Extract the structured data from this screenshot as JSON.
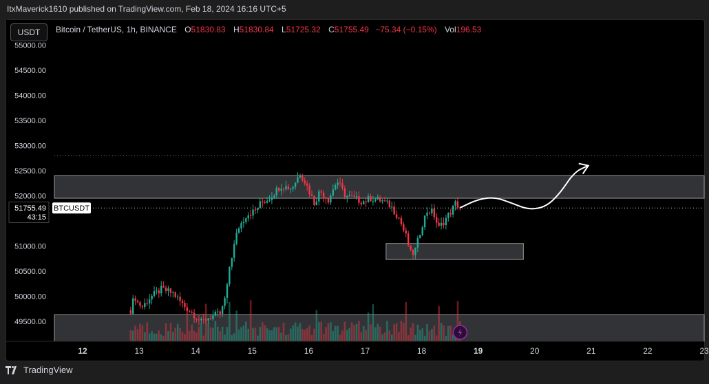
{
  "publisher": "ItxMaverick1610 published on TradingView.com, Feb 18, 2024 16:16 UTC+5",
  "currency": "USDT",
  "legend": {
    "pair": "Bitcoin / TetherUS, 1h, BINANCE",
    "o_label": "O",
    "o": "51830.83",
    "h_label": "H",
    "h": "51830.84",
    "l_label": "L",
    "l": "51725.32",
    "c_label": "C",
    "c": "51755.49",
    "change": "−75.34 (−0.15%)",
    "vol_label": "Vol",
    "vol": "196.53"
  },
  "price_tag": {
    "symbol": "BTCUSDT",
    "price": "51755.49",
    "countdown": "43:15"
  },
  "footer_brand": "TradingView",
  "colors": {
    "up": "#22ab94",
    "down": "#f23645",
    "zone": "#5b5d63",
    "arrow": "#ffffff",
    "lightning": "#9c27b0"
  },
  "chart_data": {
    "type": "candlestick",
    "title": "Bitcoin / TetherUS, 1h, BINANCE",
    "y_ticks": [
      55000,
      54500,
      54000,
      53500,
      53000,
      52500,
      52000,
      51000,
      50500,
      50000,
      49500
    ],
    "y_tick_labels": [
      "55000.00",
      "54500.00",
      "54000.00",
      "53500.00",
      "53000.00",
      "52500.00",
      "52000.00",
      "51000.00",
      "50500.00",
      "50000.00",
      "49500.00"
    ],
    "ylim": [
      49100,
      55500
    ],
    "x_ticks": [
      "12",
      "13",
      "14",
      "15",
      "16",
      "17",
      "18",
      "19",
      "20",
      "21",
      "22",
      "23"
    ],
    "x_range_days": [
      11.5,
      23.0
    ],
    "last_price": 51755.49,
    "dotted_high": 52800,
    "zones": [
      {
        "from_day": 11.5,
        "to_day": 23.0,
        "low": 51950,
        "high": 52400
      },
      {
        "from_day": 17.37,
        "to_day": 19.8,
        "low": 50730,
        "high": 51050
      },
      {
        "from_day": 11.5,
        "to_day": 23.0,
        "low": 49100,
        "high": 49630
      }
    ],
    "anchors": [
      [
        12.85,
        49720
      ],
      [
        12.92,
        50020
      ],
      [
        12.95,
        49900
      ],
      [
        13.05,
        49780
      ],
      [
        13.2,
        49980
      ],
      [
        13.4,
        50140
      ],
      [
        13.6,
        50060
      ],
      [
        13.8,
        49800
      ],
      [
        14.0,
        49600
      ],
      [
        14.1,
        49480
      ],
      [
        14.2,
        49560
      ],
      [
        14.3,
        49600
      ],
      [
        14.45,
        49660
      ],
      [
        14.55,
        50100
      ],
      [
        14.6,
        50600
      ],
      [
        14.75,
        51350
      ],
      [
        14.9,
        51620
      ],
      [
        15.05,
        51700
      ],
      [
        15.15,
        51850
      ],
      [
        15.3,
        51950
      ],
      [
        15.5,
        52200
      ],
      [
        15.7,
        52150
      ],
      [
        15.85,
        52450
      ],
      [
        15.95,
        52250
      ],
      [
        16.1,
        51850
      ],
      [
        16.2,
        52100
      ],
      [
        16.35,
        51920
      ],
      [
        16.5,
        52300
      ],
      [
        16.65,
        52000
      ],
      [
        16.8,
        51950
      ],
      [
        16.95,
        51880
      ],
      [
        17.1,
        51950
      ],
      [
        17.3,
        51900
      ],
      [
        17.45,
        51800
      ],
      [
        17.6,
        51550
      ],
      [
        17.72,
        51200
      ],
      [
        17.82,
        50800
      ],
      [
        17.9,
        50950
      ],
      [
        18.0,
        51400
      ],
      [
        18.1,
        51700
      ],
      [
        18.2,
        51680
      ],
      [
        18.3,
        51350
      ],
      [
        18.4,
        51500
      ],
      [
        18.5,
        51650
      ],
      [
        18.6,
        51850
      ],
      [
        18.68,
        51755
      ]
    ],
    "projection": [
      [
        18.68,
        51760
      ],
      [
        19.0,
        51930
      ],
      [
        19.3,
        51970
      ],
      [
        19.6,
        51850
      ],
      [
        19.9,
        51720
      ],
      [
        20.2,
        51780
      ],
      [
        20.45,
        52050
      ],
      [
        20.7,
        52470
      ],
      [
        20.95,
        52600
      ]
    ]
  }
}
